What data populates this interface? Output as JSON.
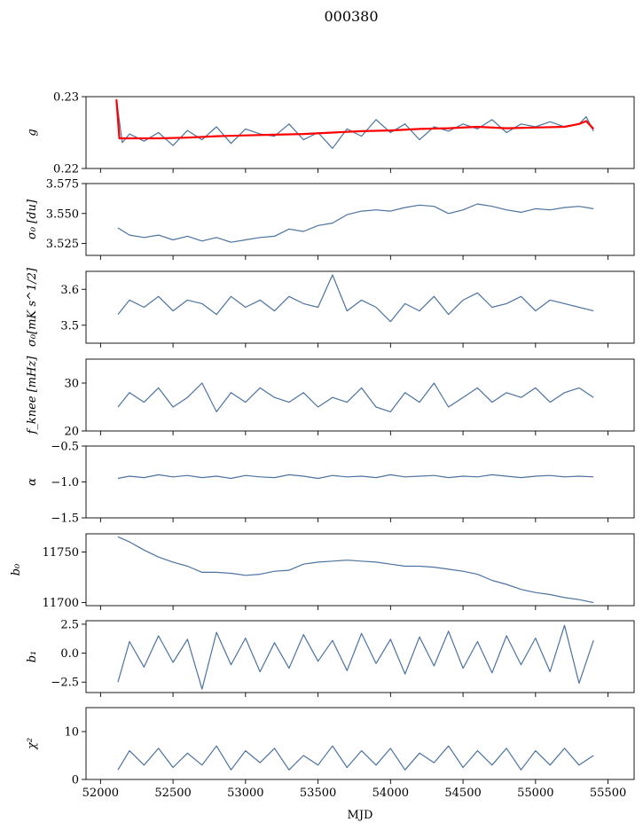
{
  "title": "000380",
  "xlabel": "MJD",
  "colors": {
    "series": "#4c72a0",
    "fit": "#ff0000",
    "axis": "#000000"
  },
  "chart_data": [
    {
      "type": "line",
      "id": "g",
      "ylabel": "g",
      "ylim": [
        0.22,
        0.23
      ],
      "yticks": [
        0.22,
        0.23
      ],
      "yticklabels": [
        "0.22",
        "0.23"
      ],
      "xlim": [
        51900,
        55680
      ],
      "series": [
        {
          "role": "data",
          "color": "#4c72a0",
          "x": [
            52110,
            52150,
            52200,
            52300,
            52400,
            52500,
            52600,
            52700,
            52800,
            52900,
            53000,
            53100,
            53200,
            53300,
            53400,
            53500,
            53600,
            53700,
            53800,
            53900,
            54000,
            54100,
            54200,
            54300,
            54400,
            54500,
            54600,
            54700,
            54800,
            54900,
            55000,
            55100,
            55200,
            55300,
            55350,
            55400
          ],
          "y": [
            0.2296,
            0.2236,
            0.2248,
            0.2238,
            0.225,
            0.2232,
            0.2253,
            0.224,
            0.2258,
            0.2235,
            0.2255,
            0.2248,
            0.2245,
            0.2262,
            0.224,
            0.225,
            0.2228,
            0.2255,
            0.2245,
            0.2268,
            0.225,
            0.2262,
            0.224,
            0.2258,
            0.2252,
            0.2262,
            0.2255,
            0.2268,
            0.225,
            0.2262,
            0.2258,
            0.2265,
            0.2258,
            0.2262,
            0.2272,
            0.2252
          ]
        },
        {
          "role": "fit",
          "color": "#ff0000",
          "x": [
            52110,
            52130,
            52200,
            52400,
            52600,
            52800,
            53000,
            53200,
            53400,
            53600,
            53800,
            54000,
            54200,
            54400,
            54600,
            54800,
            55000,
            55200,
            55300,
            55350,
            55400
          ],
          "y": [
            0.2296,
            0.2242,
            0.2242,
            0.2242,
            0.2243,
            0.2245,
            0.2246,
            0.2247,
            0.2248,
            0.225,
            0.2252,
            0.2253,
            0.2255,
            0.2256,
            0.2258,
            0.2256,
            0.2257,
            0.2258,
            0.2262,
            0.2266,
            0.2255
          ]
        }
      ]
    },
    {
      "type": "line",
      "id": "sigma0-du",
      "ylabel": "σ₀ [du]",
      "ylim": [
        3.515,
        3.575
      ],
      "yticks": [
        3.525,
        3.55,
        3.575
      ],
      "yticklabels": [
        "3.525",
        "3.550",
        "3.575"
      ],
      "xlim": [
        51900,
        55680
      ],
      "series": [
        {
          "color": "#4c72a0",
          "x": [
            52120,
            52200,
            52300,
            52400,
            52500,
            52600,
            52700,
            52800,
            52900,
            53000,
            53100,
            53200,
            53300,
            53400,
            53500,
            53600,
            53700,
            53800,
            53900,
            54000,
            54100,
            54200,
            54300,
            54400,
            54500,
            54600,
            54700,
            54800,
            54900,
            55000,
            55100,
            55200,
            55300,
            55400
          ],
          "y": [
            3.538,
            3.532,
            3.53,
            3.532,
            3.528,
            3.531,
            3.527,
            3.53,
            3.526,
            3.528,
            3.53,
            3.531,
            3.537,
            3.535,
            3.54,
            3.542,
            3.549,
            3.552,
            3.553,
            3.552,
            3.555,
            3.557,
            3.556,
            3.55,
            3.553,
            3.558,
            3.556,
            3.553,
            3.551,
            3.554,
            3.553,
            3.555,
            3.556,
            3.554
          ]
        }
      ]
    },
    {
      "type": "line",
      "id": "sigma0-mk",
      "ylabel": "σ₀[mK s^1/2]",
      "ylim": [
        3.45,
        3.65
      ],
      "yticks": [
        3.5,
        3.6
      ],
      "yticklabels": [
        "3.5",
        "3.6"
      ],
      "xlim": [
        51900,
        55680
      ],
      "series": [
        {
          "color": "#4c72a0",
          "x": [
            52120,
            52200,
            52300,
            52400,
            52500,
            52600,
            52700,
            52800,
            52900,
            53000,
            53100,
            53200,
            53300,
            53400,
            53500,
            53600,
            53700,
            53800,
            53900,
            54000,
            54100,
            54200,
            54300,
            54400,
            54500,
            54600,
            54700,
            54800,
            54900,
            55000,
            55100,
            55200,
            55300,
            55400
          ],
          "y": [
            3.53,
            3.57,
            3.55,
            3.58,
            3.54,
            3.57,
            3.56,
            3.53,
            3.58,
            3.55,
            3.57,
            3.54,
            3.58,
            3.56,
            3.55,
            3.64,
            3.54,
            3.57,
            3.55,
            3.51,
            3.56,
            3.54,
            3.58,
            3.53,
            3.57,
            3.59,
            3.55,
            3.56,
            3.58,
            3.54,
            3.57,
            3.56,
            3.55,
            3.54
          ]
        }
      ]
    },
    {
      "type": "line",
      "id": "fknee",
      "ylabel": "f_knee [mHz]",
      "ylim": [
        20,
        35
      ],
      "yticks": [
        20,
        30
      ],
      "yticklabels": [
        "20",
        "30"
      ],
      "xlim": [
        51900,
        55680
      ],
      "series": [
        {
          "color": "#4c72a0",
          "x": [
            52120,
            52200,
            52300,
            52400,
            52500,
            52600,
            52700,
            52800,
            52900,
            53000,
            53100,
            53200,
            53300,
            53400,
            53500,
            53600,
            53700,
            53800,
            53900,
            54000,
            54100,
            54200,
            54300,
            54400,
            54500,
            54600,
            54700,
            54800,
            54900,
            55000,
            55100,
            55200,
            55300,
            55400
          ],
          "y": [
            25,
            28,
            26,
            29,
            25,
            27,
            30,
            24,
            28,
            26,
            29,
            27,
            26,
            28,
            25,
            27,
            26,
            29,
            25,
            24,
            28,
            26,
            30,
            25,
            27,
            29,
            26,
            28,
            27,
            29,
            26,
            28,
            29,
            27
          ]
        }
      ]
    },
    {
      "type": "line",
      "id": "alpha",
      "ylabel": "α",
      "ylim": [
        -1.5,
        -0.5
      ],
      "yticks": [
        -1.5,
        -1.0,
        -0.5
      ],
      "yticklabels": [
        "−1.5",
        "−1.0",
        "−0.5"
      ],
      "xlim": [
        51900,
        55680
      ],
      "series": [
        {
          "color": "#4c72a0",
          "x": [
            52120,
            52200,
            52300,
            52400,
            52500,
            52600,
            52700,
            52800,
            52900,
            53000,
            53100,
            53200,
            53300,
            53400,
            53500,
            53600,
            53700,
            53800,
            53900,
            54000,
            54100,
            54200,
            54300,
            54400,
            54500,
            54600,
            54700,
            54800,
            54900,
            55000,
            55100,
            55200,
            55300,
            55400
          ],
          "y": [
            -0.95,
            -0.92,
            -0.94,
            -0.9,
            -0.93,
            -0.91,
            -0.94,
            -0.92,
            -0.95,
            -0.91,
            -0.93,
            -0.94,
            -0.9,
            -0.92,
            -0.95,
            -0.91,
            -0.93,
            -0.92,
            -0.94,
            -0.9,
            -0.93,
            -0.92,
            -0.91,
            -0.94,
            -0.92,
            -0.93,
            -0.9,
            -0.92,
            -0.94,
            -0.92,
            -0.91,
            -0.93,
            -0.92,
            -0.93
          ]
        }
      ]
    },
    {
      "type": "line",
      "id": "b0",
      "ylabel": "b₀",
      "ylim": [
        11697,
        11768
      ],
      "yticks": [
        11700,
        11750
      ],
      "yticklabels": [
        "11700",
        "11750"
      ],
      "xlim": [
        51900,
        55680
      ],
      "series": [
        {
          "color": "#4c72a0",
          "x": [
            52120,
            52200,
            52300,
            52400,
            52500,
            52600,
            52700,
            52800,
            52900,
            53000,
            53100,
            53200,
            53300,
            53400,
            53500,
            53600,
            53700,
            53800,
            53900,
            54000,
            54100,
            54200,
            54300,
            54400,
            54500,
            54600,
            54700,
            54800,
            54900,
            55000,
            55100,
            55200,
            55300,
            55400
          ],
          "y": [
            11765,
            11760,
            11752,
            11745,
            11740,
            11736,
            11730,
            11730,
            11729,
            11727,
            11728,
            11731,
            11732,
            11738,
            11740,
            11741,
            11742,
            11741,
            11740,
            11738,
            11736,
            11736,
            11735,
            11733,
            11731,
            11728,
            11722,
            11718,
            11713,
            11710,
            11708,
            11705,
            11703,
            11700
          ]
        }
      ]
    },
    {
      "type": "line",
      "id": "b1",
      "ylabel": "b₁",
      "ylim": [
        -3.4,
        2.8
      ],
      "yticks": [
        -2.5,
        0.0,
        2.5
      ],
      "yticklabels": [
        "−2.5",
        "0.0",
        "2.5"
      ],
      "xlim": [
        51900,
        55680
      ],
      "series": [
        {
          "color": "#4c72a0",
          "x": [
            52120,
            52200,
            52300,
            52400,
            52500,
            52600,
            52700,
            52800,
            52900,
            53000,
            53100,
            53200,
            53300,
            53400,
            53500,
            53600,
            53700,
            53800,
            53900,
            54000,
            54100,
            54200,
            54300,
            54400,
            54500,
            54600,
            54700,
            54800,
            54900,
            55000,
            55100,
            55200,
            55300,
            55400
          ],
          "y": [
            -2.5,
            1.0,
            -1.2,
            1.5,
            -0.8,
            1.2,
            -3.1,
            1.8,
            -1.0,
            1.3,
            -1.6,
            0.9,
            -1.3,
            1.6,
            -0.7,
            1.1,
            -1.5,
            1.7,
            -0.9,
            1.2,
            -1.8,
            1.4,
            -1.1,
            1.9,
            -1.3,
            1.0,
            -1.7,
            1.5,
            -1.0,
            1.3,
            -1.6,
            2.4,
            -2.6,
            1.1
          ]
        }
      ]
    },
    {
      "type": "line",
      "id": "chi2",
      "ylabel": "χ²",
      "ylim": [
        0,
        15
      ],
      "yticks": [
        0,
        10
      ],
      "yticklabels": [
        "0",
        "10"
      ],
      "xlim": [
        51900,
        55680
      ],
      "xticks": [
        52000,
        52500,
        53000,
        53500,
        54000,
        54500,
        55000,
        55500
      ],
      "xticklabels": [
        "52000",
        "52500",
        "53000",
        "53500",
        "54000",
        "54500",
        "55000",
        "55500"
      ],
      "series": [
        {
          "color": "#4c72a0",
          "x": [
            52120,
            52200,
            52300,
            52400,
            52500,
            52600,
            52700,
            52800,
            52900,
            53000,
            53100,
            53200,
            53300,
            53400,
            53500,
            53600,
            53700,
            53800,
            53900,
            54000,
            54100,
            54200,
            54300,
            54400,
            54500,
            54600,
            54700,
            54800,
            54900,
            55000,
            55100,
            55200,
            55300,
            55400
          ],
          "y": [
            2.0,
            6.0,
            3.0,
            6.5,
            2.5,
            5.5,
            3.0,
            7.0,
            2.0,
            6.0,
            3.5,
            6.5,
            2.0,
            5.0,
            3.0,
            7.0,
            2.5,
            6.0,
            3.0,
            6.5,
            2.0,
            5.5,
            3.5,
            7.0,
            2.5,
            6.0,
            3.0,
            6.5,
            2.0,
            6.0,
            3.0,
            6.5,
            3.0,
            5.0
          ]
        }
      ]
    }
  ]
}
